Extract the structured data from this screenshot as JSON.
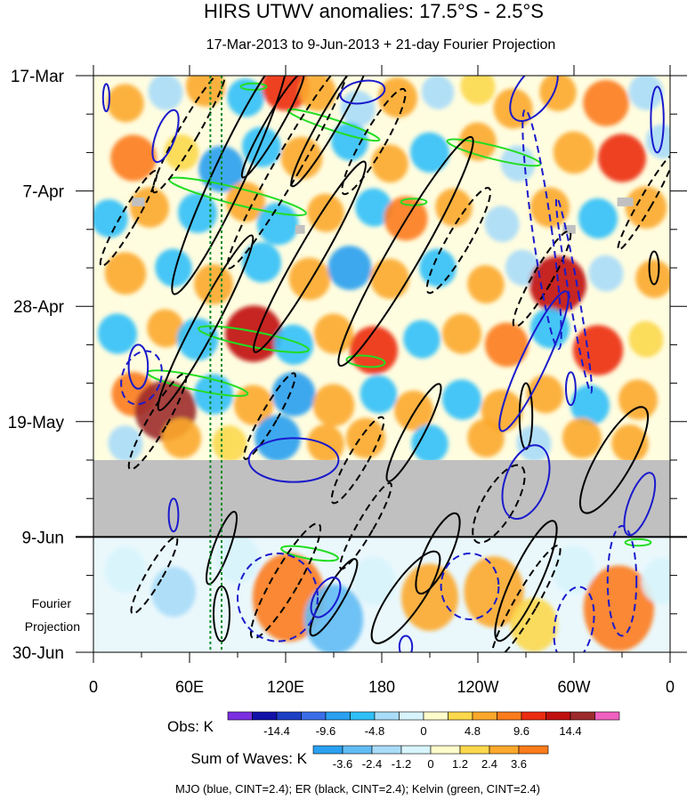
{
  "chart_data": {
    "type": "heatmap",
    "title": "HIRS UTWV anomalies: 17.5°S - 2.5°S",
    "subtitle": "17-Mar-2013 to 9-Jun-2013 + 21-day Fourier Projection",
    "x_ticks": [
      {
        "label": "0",
        "lon": 0
      },
      {
        "label": "60E",
        "lon": 60
      },
      {
        "label": "120E",
        "lon": 120
      },
      {
        "label": "180",
        "lon": 180
      },
      {
        "label": "120W",
        "lon": 240
      },
      {
        "label": "60W",
        "lon": 300
      },
      {
        "label": "0",
        "lon": 360
      }
    ],
    "xlim": [
      0,
      360
    ],
    "y_ticks": [
      {
        "label": "17-Mar",
        "day": 0
      },
      {
        "label": "7-Apr",
        "day": 21
      },
      {
        "label": "28-Apr",
        "day": 42
      },
      {
        "label": "19-May",
        "day": 63
      },
      {
        "label": "9-Jun",
        "day": 84
      },
      {
        "label": "30-Jun",
        "day": 105
      }
    ],
    "ylim_days": [
      0,
      105
    ],
    "observation_end_day": 84,
    "missing_data_band_days": [
      70,
      84
    ],
    "fourier_label": [
      "Fourier",
      "Projection"
    ],
    "obs_colorbar": {
      "label": "Obs: K",
      "colors": [
        "#7b2fe0",
        "#1212a8",
        "#1d3fc4",
        "#3a6ee8",
        "#2aa0f0",
        "#30c0f8",
        "#a8dcf8",
        "#d8f4fc",
        "#fffccc",
        "#fcd84c",
        "#fca82c",
        "#fc7c1c",
        "#ec2c10",
        "#c01010",
        "#9c2c2c",
        "#f060c0"
      ],
      "tick_labels": [
        "-14.4",
        "-9.6",
        "-4.8",
        "0",
        "4.8",
        "9.6",
        "14.4"
      ]
    },
    "waves_colorbar": {
      "label": "Sum of Waves: K",
      "colors": [
        "#2aa0f0",
        "#62bcf4",
        "#a8dcf8",
        "#d8f4fc",
        "#fffccc",
        "#fcd84c",
        "#fca82c",
        "#fc7c1c"
      ],
      "tick_labels": [
        "-3.6",
        "-2.4",
        "-1.2",
        "0",
        "1.2",
        "2.4",
        "3.6"
      ]
    },
    "legend_note": "MJO (blue, CINT=2.4); ER (black, CINT=2.4); Kelvin (green, CINT=2.4)",
    "series": [
      {
        "name": "MJO",
        "color": "#1a1acc"
      },
      {
        "name": "ER",
        "color": "#000000"
      },
      {
        "name": "Kelvin",
        "color": "#22dd22"
      }
    ],
    "reference_longitudes": [
      73,
      80
    ],
    "anomaly_blobs": [
      {
        "lon": 20,
        "day": 5,
        "v": 5
      },
      {
        "lon": 45,
        "day": 3,
        "v": -4
      },
      {
        "lon": 70,
        "day": 2,
        "v": 6
      },
      {
        "lon": 95,
        "day": 4,
        "v": -5
      },
      {
        "lon": 120,
        "day": 2,
        "v": 10
      },
      {
        "lon": 140,
        "day": 3,
        "v": 5
      },
      {
        "lon": 165,
        "day": 6,
        "v": -4
      },
      {
        "lon": 190,
        "day": 4,
        "v": 6
      },
      {
        "lon": 215,
        "day": 3,
        "v": -3
      },
      {
        "lon": 240,
        "day": 2,
        "v": 4
      },
      {
        "lon": 262,
        "day": 6,
        "v": 6
      },
      {
        "lon": 290,
        "day": 3,
        "v": 5
      },
      {
        "lon": 320,
        "day": 5,
        "v": 9
      },
      {
        "lon": 345,
        "day": 3,
        "v": -4
      },
      {
        "lon": 25,
        "day": 15,
        "v": 9
      },
      {
        "lon": 55,
        "day": 14,
        "v": 4
      },
      {
        "lon": 80,
        "day": 17,
        "v": -9
      },
      {
        "lon": 105,
        "day": 13,
        "v": -6
      },
      {
        "lon": 130,
        "day": 15,
        "v": 7
      },
      {
        "lon": 160,
        "day": 12,
        "v": -5
      },
      {
        "lon": 185,
        "day": 16,
        "v": 5
      },
      {
        "lon": 210,
        "day": 14,
        "v": -6
      },
      {
        "lon": 240,
        "day": 12,
        "v": 5
      },
      {
        "lon": 265,
        "day": 16,
        "v": -4
      },
      {
        "lon": 300,
        "day": 14,
        "v": 7
      },
      {
        "lon": 330,
        "day": 15,
        "v": 10
      },
      {
        "lon": 355,
        "day": 12,
        "v": -3
      },
      {
        "lon": 10,
        "day": 26,
        "v": -5
      },
      {
        "lon": 35,
        "day": 24,
        "v": 6
      },
      {
        "lon": 65,
        "day": 25,
        "v": -6
      },
      {
        "lon": 95,
        "day": 23,
        "v": 6
      },
      {
        "lon": 115,
        "day": 27,
        "v": -7
      },
      {
        "lon": 145,
        "day": 25,
        "v": 5
      },
      {
        "lon": 175,
        "day": 24,
        "v": -5
      },
      {
        "lon": 195,
        "day": 26,
        "v": 8
      },
      {
        "lon": 225,
        "day": 24,
        "v": 5
      },
      {
        "lon": 255,
        "day": 27,
        "v": -4
      },
      {
        "lon": 285,
        "day": 24,
        "v": 6
      },
      {
        "lon": 315,
        "day": 26,
        "v": -6
      },
      {
        "lon": 345,
        "day": 24,
        "v": 7
      },
      {
        "lon": 20,
        "day": 36,
        "v": 7
      },
      {
        "lon": 50,
        "day": 35,
        "v": -5
      },
      {
        "lon": 75,
        "day": 38,
        "v": 6
      },
      {
        "lon": 105,
        "day": 34,
        "v": -6
      },
      {
        "lon": 135,
        "day": 37,
        "v": 7
      },
      {
        "lon": 160,
        "day": 35,
        "v": -8
      },
      {
        "lon": 185,
        "day": 37,
        "v": 6
      },
      {
        "lon": 215,
        "day": 35,
        "v": -5
      },
      {
        "lon": 245,
        "day": 38,
        "v": 5
      },
      {
        "lon": 268,
        "day": 35,
        "v": -4
      },
      {
        "lon": 290,
        "day": 38,
        "v": 14
      },
      {
        "lon": 320,
        "day": 36,
        "v": -4
      },
      {
        "lon": 350,
        "day": 37,
        "v": 5
      },
      {
        "lon": 15,
        "day": 47,
        "v": -6
      },
      {
        "lon": 45,
        "day": 46,
        "v": 5
      },
      {
        "lon": 65,
        "day": 48,
        "v": -7
      },
      {
        "lon": 100,
        "day": 47,
        "v": 14
      },
      {
        "lon": 125,
        "day": 49,
        "v": -6
      },
      {
        "lon": 150,
        "day": 47,
        "v": 6
      },
      {
        "lon": 175,
        "day": 50,
        "v": 10
      },
      {
        "lon": 205,
        "day": 48,
        "v": -5
      },
      {
        "lon": 230,
        "day": 47,
        "v": 6
      },
      {
        "lon": 258,
        "day": 49,
        "v": 8
      },
      {
        "lon": 285,
        "day": 46,
        "v": -6
      },
      {
        "lon": 315,
        "day": 50,
        "v": 11
      },
      {
        "lon": 345,
        "day": 48,
        "v": 4
      },
      {
        "lon": 25,
        "day": 58,
        "v": 8
      },
      {
        "lon": 45,
        "day": 61,
        "v": 16
      },
      {
        "lon": 75,
        "day": 58,
        "v": -6
      },
      {
        "lon": 100,
        "day": 60,
        "v": 6
      },
      {
        "lon": 125,
        "day": 58,
        "v": -8
      },
      {
        "lon": 150,
        "day": 60,
        "v": 7
      },
      {
        "lon": 178,
        "day": 58,
        "v": -5
      },
      {
        "lon": 200,
        "day": 61,
        "v": 6
      },
      {
        "lon": 230,
        "day": 59,
        "v": -6
      },
      {
        "lon": 255,
        "day": 61,
        "v": 7
      },
      {
        "lon": 282,
        "day": 58,
        "v": 5
      },
      {
        "lon": 310,
        "day": 60,
        "v": -6
      },
      {
        "lon": 340,
        "day": 59,
        "v": 6
      },
      {
        "lon": 20,
        "day": 67,
        "v": -4
      },
      {
        "lon": 55,
        "day": 66,
        "v": 6
      },
      {
        "lon": 85,
        "day": 67,
        "v": 4
      },
      {
        "lon": 115,
        "day": 66,
        "v": -9
      },
      {
        "lon": 145,
        "day": 67,
        "v": 5
      },
      {
        "lon": 170,
        "day": 66,
        "v": 6
      },
      {
        "lon": 210,
        "day": 67,
        "v": -5
      },
      {
        "lon": 245,
        "day": 66,
        "v": 5
      },
      {
        "lon": 275,
        "day": 67,
        "v": -4
      },
      {
        "lon": 305,
        "day": 66,
        "v": 6
      },
      {
        "lon": 335,
        "day": 67,
        "v": 5
      }
    ],
    "projection_blobs": [
      {
        "lon": 20,
        "day": 90,
        "v": -1.0
      },
      {
        "lon": 50,
        "day": 94,
        "v": -1.3
      },
      {
        "lon": 90,
        "day": 88,
        "v": -1.2
      },
      {
        "lon": 122,
        "day": 95,
        "v": 4.2
      },
      {
        "lon": 150,
        "day": 99,
        "v": -2.8
      },
      {
        "lon": 175,
        "day": 92,
        "v": -1.2
      },
      {
        "lon": 210,
        "day": 95,
        "v": 2.6
      },
      {
        "lon": 250,
        "day": 94,
        "v": 2.9
      },
      {
        "lon": 275,
        "day": 100,
        "v": 1.6
      },
      {
        "lon": 300,
        "day": 90,
        "v": -1.2
      },
      {
        "lon": 328,
        "day": 97,
        "v": 4.0
      },
      {
        "lon": 355,
        "day": 92,
        "v": -1.0
      }
    ],
    "mjo_contours": [
      {
        "lon": 8,
        "day": 4,
        "rx": 2,
        "ry": 2.5,
        "rot": 0,
        "neg": false
      },
      {
        "lon": 45,
        "day": 11,
        "rx": 6,
        "ry": 5,
        "rot": 20,
        "neg": false
      },
      {
        "lon": 168,
        "day": 3,
        "rx": 14,
        "ry": 2,
        "rot": -10,
        "neg": false
      },
      {
        "lon": 275,
        "day": 3,
        "rx": 11,
        "ry": 6,
        "rot": 35,
        "neg": false
      },
      {
        "lon": 352,
        "day": 8,
        "rx": 4,
        "ry": 6,
        "rot": 0,
        "neg": false
      },
      {
        "lon": 275,
        "day": 52,
        "rx": 8,
        "ry": 14,
        "rot": 25,
        "neg": false
      },
      {
        "lon": 28,
        "day": 53,
        "rx": 6,
        "ry": 4,
        "rot": 0,
        "neg": false
      },
      {
        "lon": 298,
        "day": 57,
        "rx": 3,
        "ry": 3,
        "rot": 0,
        "neg": false
      },
      {
        "lon": 125,
        "day": 70,
        "rx": 28,
        "ry": 4,
        "rot": 0,
        "neg": false
      },
      {
        "lon": 270,
        "day": 74,
        "rx": 13,
        "ry": 7,
        "rot": 20,
        "neg": false
      },
      {
        "lon": 50,
        "day": 80,
        "rx": 3,
        "ry": 3,
        "rot": 0,
        "neg": false
      },
      {
        "lon": 341,
        "day": 78,
        "rx": 7,
        "ry": 6,
        "rot": 20,
        "neg": false
      },
      {
        "lon": 145,
        "day": 95,
        "rx": 7,
        "ry": 4,
        "rot": 30,
        "neg": false
      },
      {
        "lon": 195,
        "day": 104,
        "rx": 4,
        "ry": 2,
        "rot": 0,
        "neg": false
      },
      {
        "lon": 30,
        "day": 55,
        "rx": 12,
        "ry": 5,
        "rot": 20,
        "neg": true
      },
      {
        "lon": 280,
        "day": 28,
        "rx": 6,
        "ry": 22,
        "rot": -8,
        "neg": true
      },
      {
        "lon": 300,
        "day": 40,
        "rx": 3,
        "ry": 18,
        "rot": -10,
        "neg": true
      },
      {
        "lon": 115,
        "day": 95,
        "rx": 25,
        "ry": 8,
        "rot": 0,
        "neg": true
      },
      {
        "lon": 300,
        "day": 100,
        "rx": 12,
        "ry": 7,
        "rot": 10,
        "neg": true
      },
      {
        "lon": 330,
        "day": 92,
        "rx": 9,
        "ry": 10,
        "rot": 0,
        "neg": true
      },
      {
        "lon": 235,
        "day": 93,
        "rx": 18,
        "ry": 6,
        "rot": 0,
        "neg": true
      }
    ],
    "er_contours": [
      {
        "lon": 85,
        "day": 18,
        "rx": 10,
        "ry": 24,
        "rot": 25,
        "neg": false
      },
      {
        "lon": 148,
        "day": 8,
        "rx": 6,
        "ry": 14,
        "rot": 30,
        "neg": false
      },
      {
        "lon": 112,
        "day": 9,
        "rx": 5,
        "ry": 11,
        "rot": 30,
        "neg": false
      },
      {
        "lon": 195,
        "day": 32,
        "rx": 10,
        "ry": 24,
        "rot": 30,
        "neg": false
      },
      {
        "lon": 135,
        "day": 33,
        "rx": 8,
        "ry": 20,
        "rot": 30,
        "neg": false
      },
      {
        "lon": 70,
        "day": 45,
        "rx": 7,
        "ry": 18,
        "rot": 28,
        "neg": false
      },
      {
        "lon": 200,
        "day": 65,
        "rx": 6,
        "ry": 10,
        "rot": 28,
        "neg": false
      },
      {
        "lon": 270,
        "day": 62,
        "rx": 4,
        "ry": 6,
        "rot": 0,
        "neg": false
      },
      {
        "lon": 325,
        "day": 70,
        "rx": 11,
        "ry": 11,
        "rot": 30,
        "neg": false
      },
      {
        "lon": 80,
        "day": 86,
        "rx": 5,
        "ry": 7,
        "rot": 20,
        "neg": false
      },
      {
        "lon": 215,
        "day": 87,
        "rx": 8,
        "ry": 8,
        "rot": 25,
        "neg": false
      },
      {
        "lon": 195,
        "day": 95,
        "rx": 10,
        "ry": 10,
        "rot": 35,
        "neg": false
      },
      {
        "lon": 270,
        "day": 92,
        "rx": 9,
        "ry": 12,
        "rot": 25,
        "neg": false
      },
      {
        "lon": 150,
        "day": 95,
        "rx": 6,
        "ry": 8,
        "rot": 30,
        "neg": false
      },
      {
        "lon": 80,
        "day": 98,
        "rx": 5,
        "ry": 5,
        "rot": 0,
        "neg": false
      },
      {
        "lon": 350,
        "day": 35,
        "rx": 3,
        "ry": 3,
        "rot": 0,
        "neg": false
      },
      {
        "lon": 122,
        "day": 16,
        "rx": 8,
        "ry": 22,
        "rot": 30,
        "neg": true
      },
      {
        "lon": 60,
        "day": 10,
        "rx": 6,
        "ry": 13,
        "rot": 30,
        "neg": true
      },
      {
        "lon": 22,
        "day": 26,
        "rx": 5,
        "ry": 10,
        "rot": 30,
        "neg": true
      },
      {
        "lon": 175,
        "day": 12,
        "rx": 7,
        "ry": 11,
        "rot": 30,
        "neg": true
      },
      {
        "lon": 228,
        "day": 30,
        "rx": 7,
        "ry": 11,
        "rot": 30,
        "neg": true
      },
      {
        "lon": 280,
        "day": 37,
        "rx": 6,
        "ry": 10,
        "rot": 30,
        "neg": true
      },
      {
        "lon": 345,
        "day": 23,
        "rx": 4,
        "ry": 10,
        "rot": 30,
        "neg": true
      },
      {
        "lon": 40,
        "day": 63,
        "rx": 6,
        "ry": 10,
        "rot": 30,
        "neg": true
      },
      {
        "lon": 110,
        "day": 62,
        "rx": 5,
        "ry": 9,
        "rot": 30,
        "neg": true
      },
      {
        "lon": 165,
        "day": 70,
        "rx": 6,
        "ry": 9,
        "rot": 30,
        "neg": true
      },
      {
        "lon": 253,
        "day": 78,
        "rx": 10,
        "ry": 8,
        "rot": 30,
        "neg": true
      },
      {
        "lon": 120,
        "day": 92,
        "rx": 8,
        "ry": 12,
        "rot": 30,
        "neg": true
      },
      {
        "lon": 170,
        "day": 82,
        "rx": 5,
        "ry": 9,
        "rot": 30,
        "neg": true
      },
      {
        "lon": 270,
        "day": 96,
        "rx": 7,
        "ry": 12,
        "rot": 30,
        "neg": true
      },
      {
        "lon": 38,
        "day": 91,
        "rx": 5,
        "ry": 8,
        "rot": 30,
        "neg": true
      }
    ],
    "kelvin_contours": [
      {
        "lon": 150,
        "day": 9,
        "rx": 30,
        "ry": 1,
        "rot": 18,
        "neg": false
      },
      {
        "lon": 90,
        "day": 22,
        "rx": 44,
        "ry": 1.5,
        "rot": 14,
        "neg": false
      },
      {
        "lon": 100,
        "day": 48,
        "rx": 35,
        "ry": 1.4,
        "rot": 11,
        "neg": false
      },
      {
        "lon": 65,
        "day": 56,
        "rx": 32,
        "ry": 1.3,
        "rot": 12,
        "neg": false
      },
      {
        "lon": 250,
        "day": 14,
        "rx": 30,
        "ry": 1.2,
        "rot": 14,
        "neg": false
      },
      {
        "lon": 170,
        "day": 52,
        "rx": 12,
        "ry": 1,
        "rot": 5,
        "neg": false
      },
      {
        "lon": 135,
        "day": 87,
        "rx": 18,
        "ry": 1,
        "rot": 10,
        "neg": false
      },
      {
        "lon": 100,
        "day": 2,
        "rx": 8,
        "ry": 0.6,
        "rot": 0,
        "neg": false
      },
      {
        "lon": 200,
        "day": 23,
        "rx": 8,
        "ry": 0.6,
        "rot": 0,
        "neg": false
      },
      {
        "lon": 340,
        "day": 85,
        "rx": 8,
        "ry": 0.6,
        "rot": 0,
        "neg": false
      }
    ],
    "missing_boxes": [
      {
        "lon": 28,
        "day": 23,
        "w": 8,
        "h": 1.6
      },
      {
        "lon": 129,
        "day": 28,
        "w": 6,
        "h": 1.6
      },
      {
        "lon": 297,
        "day": 28,
        "w": 8,
        "h": 1.6
      },
      {
        "lon": 332,
        "day": 23,
        "w": 10,
        "h": 1.6
      }
    ]
  }
}
